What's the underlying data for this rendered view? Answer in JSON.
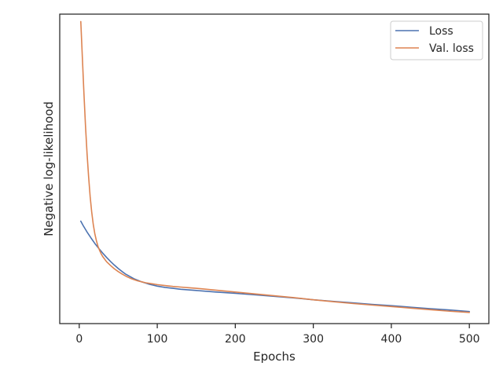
{
  "chart_data": {
    "type": "line",
    "title": "",
    "xlabel": "Epochs",
    "ylabel": "Negative log-likelihood",
    "xlim": [
      -25,
      525
    ],
    "ylim": [
      0,
      1
    ],
    "xticks": [
      0,
      100,
      200,
      300,
      400,
      500
    ],
    "xtick_labels": [
      "0",
      "100",
      "200",
      "300",
      "400",
      "500"
    ],
    "yticks_shown": false,
    "grid": false,
    "legend_position": "top-right",
    "series": [
      {
        "name": "Loss",
        "color": "#4c72b0",
        "x": [
          2,
          5,
          10,
          15,
          20,
          25,
          30,
          35,
          40,
          45,
          50,
          55,
          60,
          65,
          70,
          75,
          80,
          85,
          90,
          95,
          100,
          110,
          120,
          130,
          140,
          150,
          175,
          200,
          225,
          250,
          275,
          300,
          325,
          350,
          375,
          400,
          425,
          450,
          475,
          500
        ],
        "y": [
          0.331,
          0.317,
          0.296,
          0.277,
          0.259,
          0.243,
          0.228,
          0.214,
          0.201,
          0.189,
          0.178,
          0.168,
          0.159,
          0.152,
          0.145,
          0.14,
          0.135,
          0.131,
          0.127,
          0.124,
          0.121,
          0.117,
          0.114,
          0.111,
          0.109,
          0.107,
          0.102,
          0.098,
          0.093,
          0.088,
          0.083,
          0.077,
          0.072,
          0.067,
          0.062,
          0.058,
          0.053,
          0.048,
          0.044,
          0.039
        ]
      },
      {
        "name": "Val. loss",
        "color": "#dd8452",
        "x": [
          2,
          4,
          6,
          8,
          10,
          12,
          14,
          16,
          18,
          20,
          22,
          24,
          26,
          28,
          30,
          35,
          40,
          45,
          50,
          55,
          60,
          65,
          70,
          75,
          80,
          85,
          90,
          95,
          100,
          110,
          120,
          130,
          140,
          150,
          175,
          200,
          225,
          250,
          275,
          300,
          325,
          350,
          375,
          400,
          425,
          450,
          475,
          500
        ],
        "y": [
          0.976,
          0.86,
          0.745,
          0.64,
          0.55,
          0.475,
          0.41,
          0.36,
          0.32,
          0.29,
          0.268,
          0.25,
          0.237,
          0.226,
          0.217,
          0.2,
          0.188,
          0.177,
          0.168,
          0.16,
          0.153,
          0.147,
          0.142,
          0.138,
          0.135,
          0.132,
          0.13,
          0.128,
          0.126,
          0.123,
          0.12,
          0.118,
          0.116,
          0.114,
          0.108,
          0.102,
          0.096,
          0.09,
          0.084,
          0.077,
          0.071,
          0.065,
          0.06,
          0.055,
          0.05,
          0.045,
          0.04,
          0.036
        ]
      }
    ]
  }
}
